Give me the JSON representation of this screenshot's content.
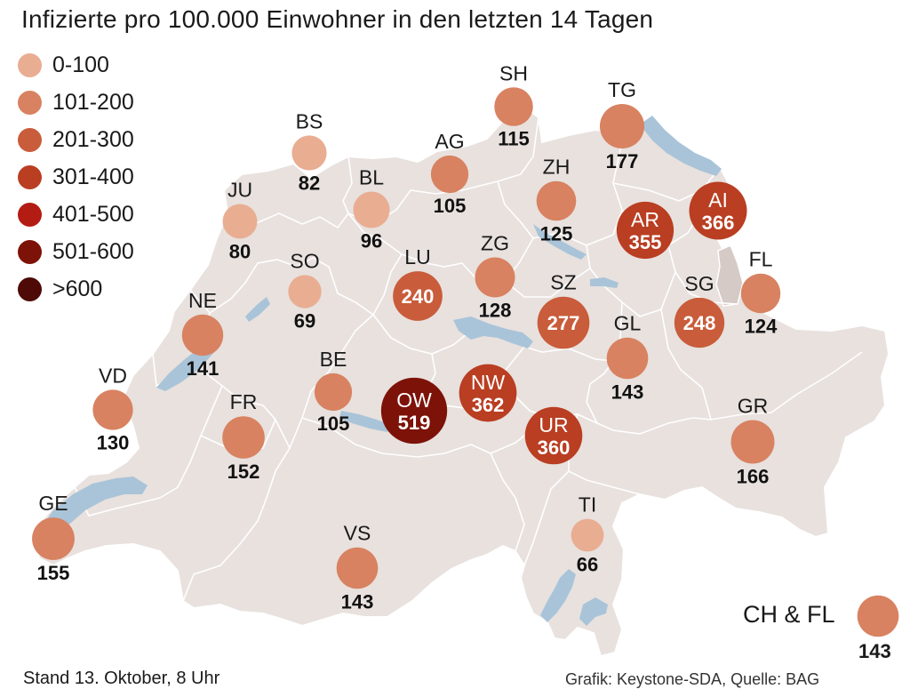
{
  "title": "Infizierte pro 100.000 Einwohner in den letzten 14 Tagen",
  "legend": [
    {
      "label": "0-100",
      "color": "#e9ad92"
    },
    {
      "label": "101-200",
      "color": "#d88261"
    },
    {
      "label": "201-300",
      "color": "#c95c3a"
    },
    {
      "label": "301-400",
      "color": "#b93e22"
    },
    {
      "label": "401-500",
      "color": "#b31c13"
    },
    {
      "label": "501-600",
      "color": "#7d1208"
    },
    {
      "label": ">600",
      "color": "#4d0a06"
    }
  ],
  "colors": {
    "land": "#e8e1de",
    "border": "#ffffff",
    "lake": "#a9c4d8",
    "fl": "#d6cac6"
  },
  "cantons": [
    {
      "abbr": "SH",
      "value": 115
    },
    {
      "abbr": "TG",
      "value": 177
    },
    {
      "abbr": "BS",
      "value": 82
    },
    {
      "abbr": "AG",
      "value": 105
    },
    {
      "abbr": "ZH",
      "value": 125
    },
    {
      "abbr": "BL",
      "value": 96
    },
    {
      "abbr": "JU",
      "value": 80
    },
    {
      "abbr": "AI",
      "value": 366
    },
    {
      "abbr": "AR",
      "value": 355
    },
    {
      "abbr": "FL",
      "value": 124
    },
    {
      "abbr": "SO",
      "value": 69
    },
    {
      "abbr": "LU",
      "value": 240
    },
    {
      "abbr": "ZG",
      "value": 128
    },
    {
      "abbr": "SZ",
      "value": 277
    },
    {
      "abbr": "SG",
      "value": 248
    },
    {
      "abbr": "NE",
      "value": 141
    },
    {
      "abbr": "GL",
      "value": 143
    },
    {
      "abbr": "VD",
      "value": 130
    },
    {
      "abbr": "BE",
      "value": 105
    },
    {
      "abbr": "OW",
      "value": 519
    },
    {
      "abbr": "NW",
      "value": 362
    },
    {
      "abbr": "FR",
      "value": 152
    },
    {
      "abbr": "UR",
      "value": 360
    },
    {
      "abbr": "GR",
      "value": 166
    },
    {
      "abbr": "GE",
      "value": 155
    },
    {
      "abbr": "TI",
      "value": 66
    },
    {
      "abbr": "VS",
      "value": 143
    }
  ],
  "total": {
    "label": "CH & FL",
    "value": 143
  },
  "footer": {
    "date": "Stand 13. Oktober, 8 Uhr",
    "source": "Grafik: Keystone-SDA, Quelle: BAG"
  }
}
